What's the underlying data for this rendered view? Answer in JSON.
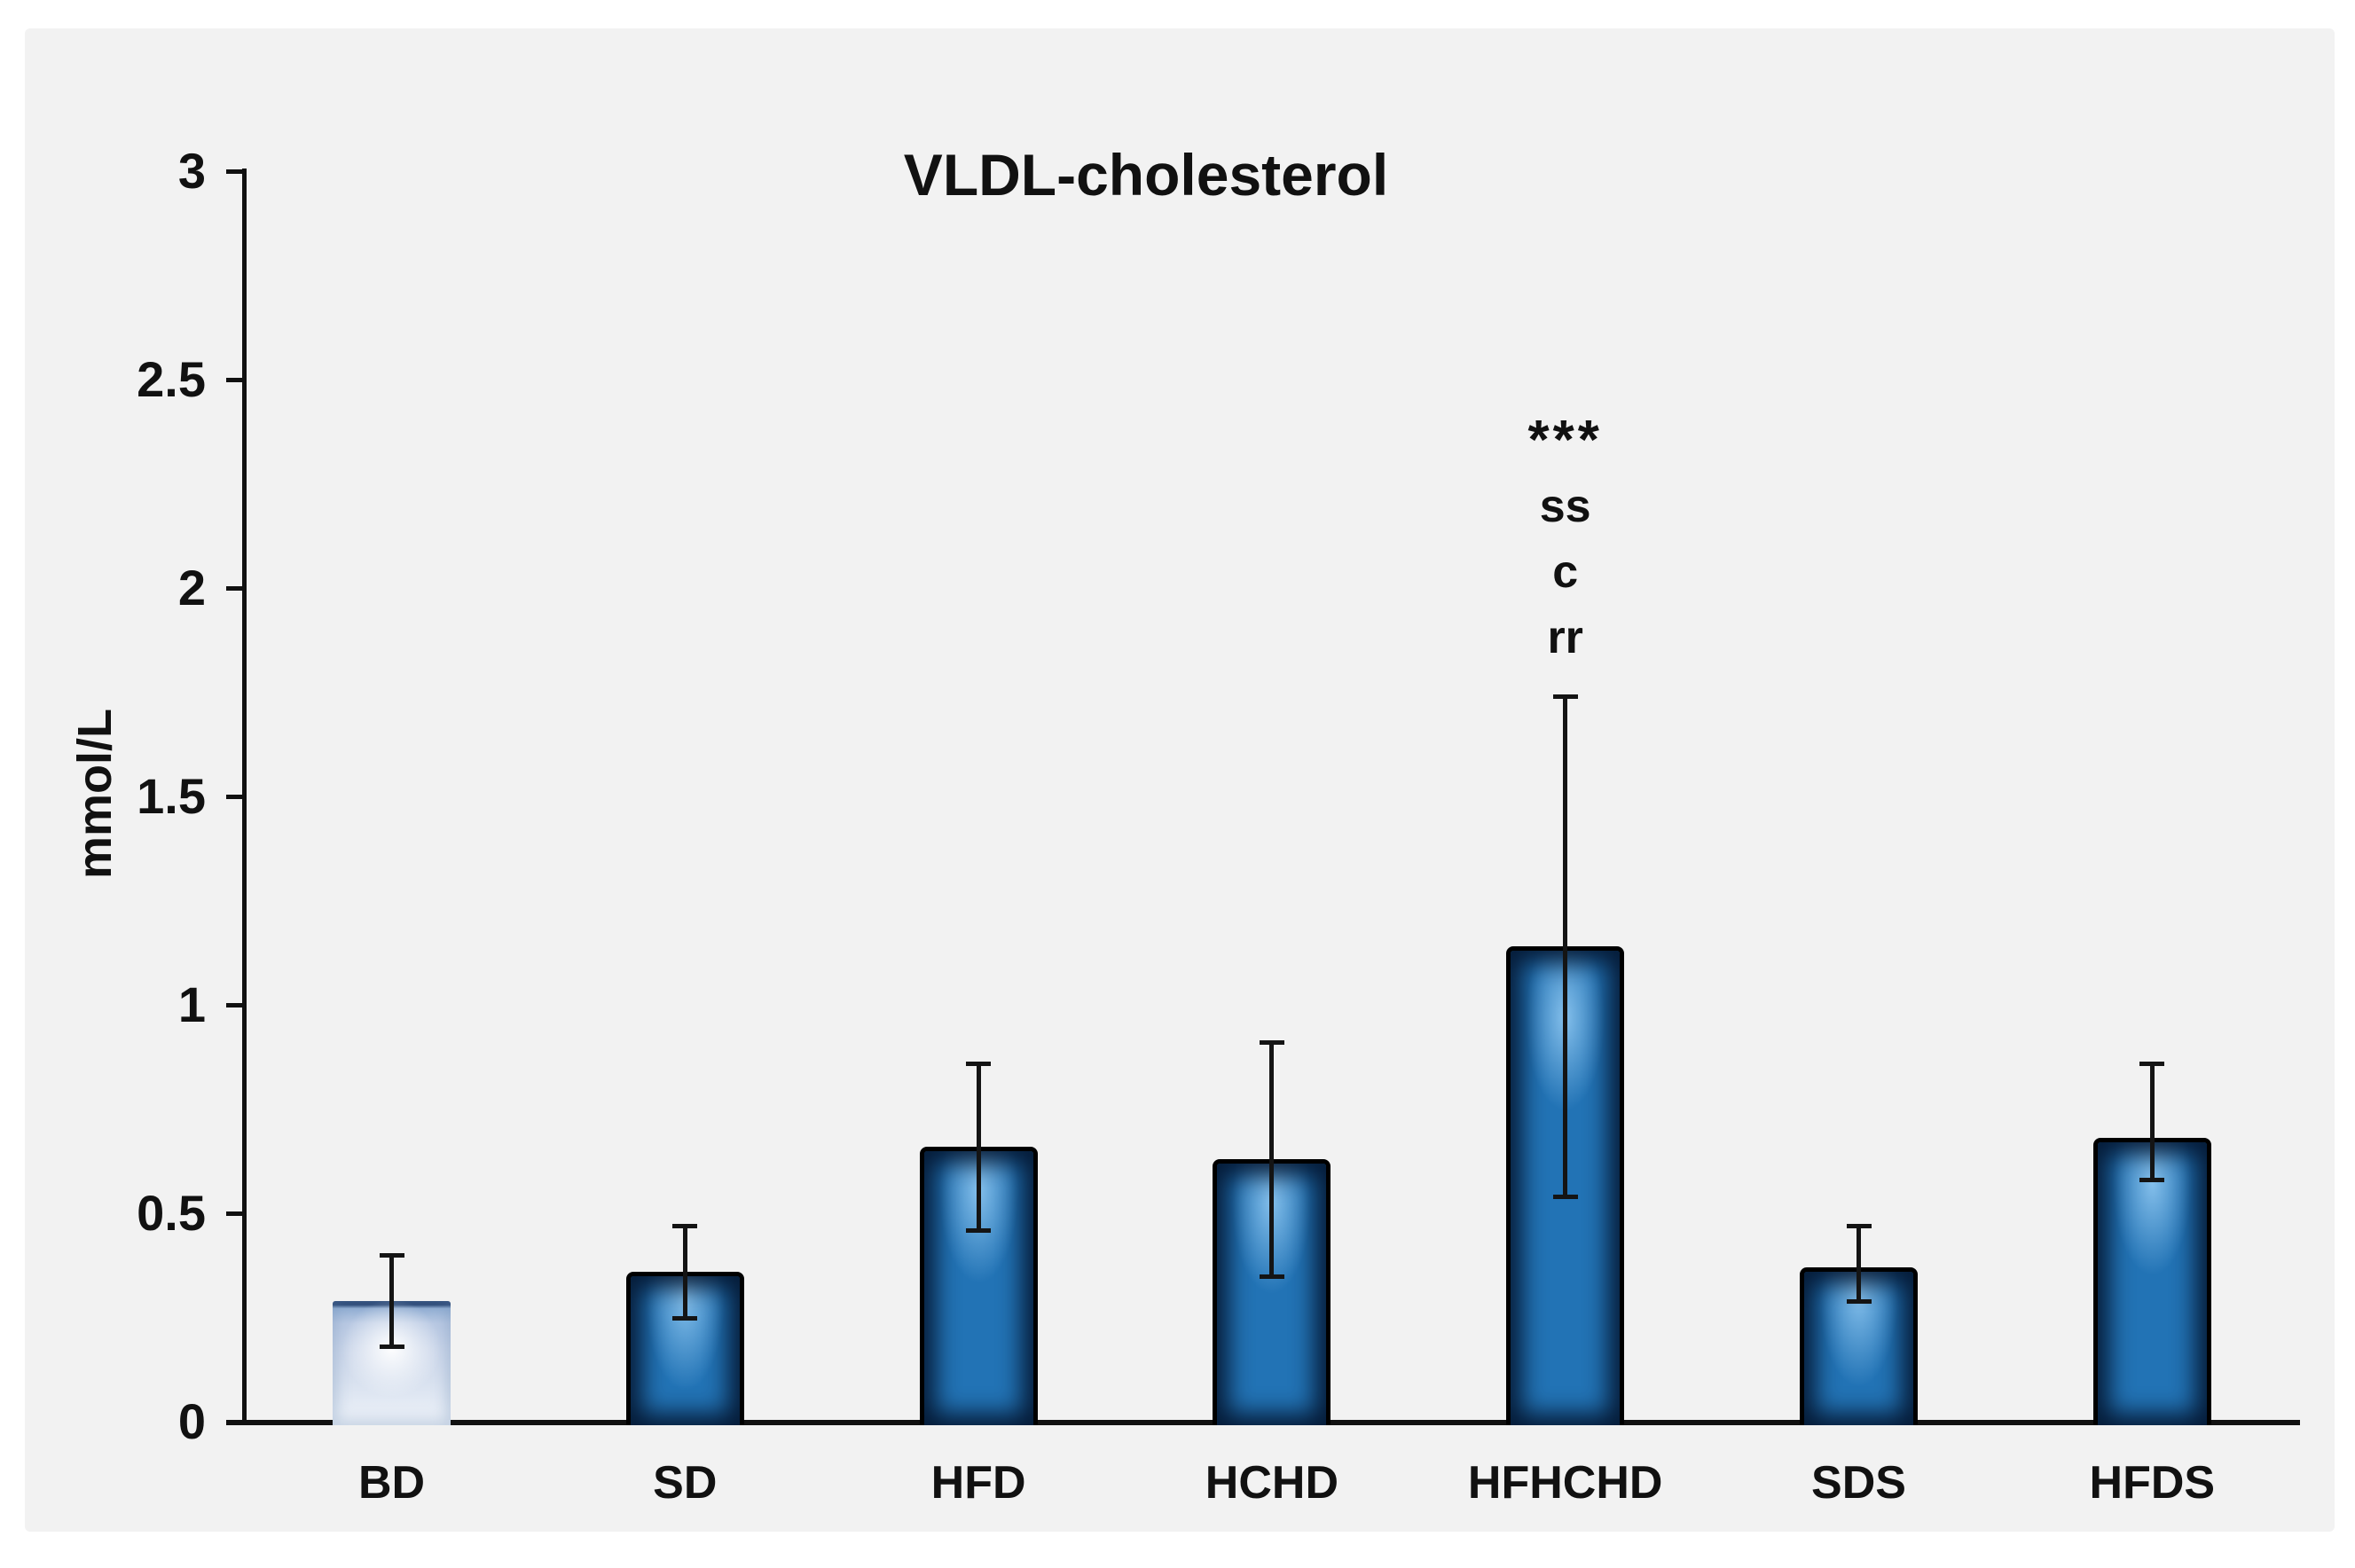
{
  "figure": {
    "title": "VLDL-cholesterol",
    "y_axis_label": "mmol/L",
    "panel_background": "#F2F2F2",
    "page_background": "#FFFFFF",
    "axis_color": "#111111",
    "bar_fill_color": "#2273B5",
    "bar_edge_color": "#000000",
    "bar_inner_shadow_color": "#031429",
    "first_bar_light_fill": "#D8E1EF"
  },
  "chart_data": {
    "type": "bar",
    "title": "VLDL-cholesterol",
    "xlabel": "",
    "ylabel": "mmol/L",
    "categories": [
      "BD",
      "SD",
      "HFD",
      "HCHD",
      "HFHCHD",
      "SDS",
      "HFDS"
    ],
    "values": [
      0.29,
      0.36,
      0.66,
      0.63,
      1.14,
      0.37,
      0.68
    ],
    "error_bars": {
      "upper_cap_values": [
        0.4,
        0.47,
        0.86,
        0.91,
        1.74,
        0.47,
        0.86
      ],
      "lower_cap_values": [
        0.18,
        0.25,
        0.46,
        0.35,
        0.54,
        0.29,
        0.58
      ]
    },
    "ylim": [
      0,
      3
    ],
    "yticks": [
      {
        "value": 3,
        "label": "3"
      },
      {
        "value": 2.5,
        "label": "2.5"
      },
      {
        "value": 2,
        "label": "2"
      },
      {
        "value": 1.5,
        "label": "1.5"
      },
      {
        "value": 1,
        "label": "1"
      },
      {
        "value": 0.5,
        "label": "0.5"
      },
      {
        "value": 0,
        "label": "0"
      }
    ],
    "grid": false,
    "legend": null,
    "annotations": [
      {
        "category": "HFHCHD",
        "lines": [
          "***",
          "ss",
          "c",
          "rr"
        ]
      }
    ],
    "style_notes": "first bar (BD) drawn with pale blue-white gradient fill; all other bars dark blue with black outline and dark inner glow"
  }
}
